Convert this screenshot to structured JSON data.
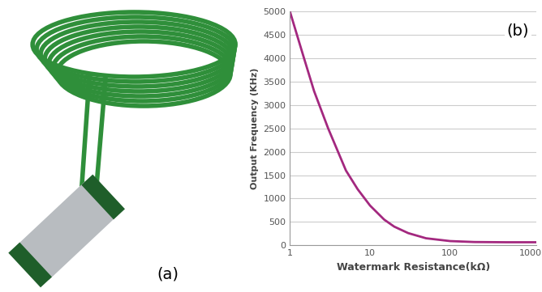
{
  "chart_data": {
    "type": "line",
    "x_label": "Watermark Resistance(kΩ)",
    "y_label": "Output Frequency (KHz)",
    "annotations": [
      "(a)",
      "(b)"
    ],
    "x": [
      1,
      1.5,
      2,
      3,
      5,
      7,
      10,
      15,
      20,
      30,
      50,
      100,
      200,
      500,
      1000,
      1200
    ],
    "values": [
      5000,
      4000,
      3300,
      2500,
      1600,
      1200,
      850,
      550,
      400,
      260,
      150,
      90,
      70,
      65,
      65,
      65
    ],
    "color": "#a3287f",
    "log": "x",
    "grid": true,
    "xlim": [
      1,
      1200
    ],
    "xticks": [
      1,
      10,
      100,
      1000
    ],
    "ylim": [
      0,
      5000
    ],
    "yticks": [
      0,
      500,
      1000,
      1500,
      2000,
      2500,
      3000,
      3500,
      4000,
      4500,
      5000
    ]
  }
}
